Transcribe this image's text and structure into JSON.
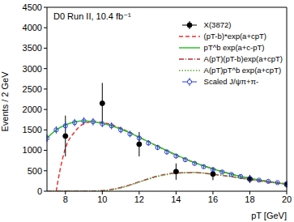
{
  "chart_data": {
    "type": "scatter",
    "title": "D0 Run II, 10.4 fb⁻¹",
    "x_label": "pT [GeV]",
    "y_label": "Events / 2 GeV",
    "xlim": [
      7,
      20
    ],
    "xticks": [
      8,
      10,
      12,
      14,
      16,
      18,
      20
    ],
    "ylim": [
      0,
      4500
    ],
    "yticks": [
      0,
      500,
      1000,
      1500,
      2000,
      2500,
      3000,
      3500,
      4000,
      4500
    ],
    "legend": "upper right",
    "series": [
      {
        "name": "X(3872)",
        "type": "scatter",
        "marker": "filled_circle",
        "color": "#000000",
        "x": [
          8,
          10,
          12,
          14,
          16,
          18,
          20
        ],
        "values": [
          1350,
          2150,
          1150,
          480,
          420,
          300,
          170
        ],
        "errors": [
          500,
          500,
          300,
          200,
          150,
          100,
          80
        ]
      },
      {
        "name": "(pT-b)*exp(a+cpT)",
        "type": "line",
        "line_style": "dashed",
        "color": "#e8322b",
        "x": [
          7.5,
          7.7,
          8,
          8.5,
          9,
          9.5,
          10,
          11,
          12,
          13,
          14,
          15,
          16,
          17,
          18,
          19,
          20
        ],
        "values": [
          0,
          500,
          1050,
          1450,
          1650,
          1700,
          1680,
          1540,
          1320,
          1100,
          880,
          700,
          550,
          420,
          320,
          240,
          180
        ]
      },
      {
        "name": "pT^b exp(a+c-pT)",
        "type": "line",
        "line_style": "solid",
        "color": "#2ec02e",
        "x": [
          7,
          7.5,
          8,
          9,
          10,
          11,
          12,
          13,
          14,
          15,
          16,
          17,
          18,
          19,
          20
        ],
        "values": [
          1300,
          1500,
          1620,
          1720,
          1660,
          1520,
          1320,
          1100,
          890,
          700,
          545,
          415,
          315,
          235,
          175
        ]
      },
      {
        "name": "A(pT)(pT-b)exp(a+cpT)",
        "type": "line",
        "line_style": "dashdot",
        "color": "#b0303a",
        "x": [
          7,
          9,
          10,
          11,
          12,
          13,
          14,
          15,
          16,
          17,
          18,
          19,
          20
        ],
        "values": [
          0,
          0,
          15,
          90,
          230,
          370,
          445,
          455,
          415,
          355,
          285,
          225,
          175
        ]
      },
      {
        "name": "A(pT)pT^b exp(a+cpT)",
        "type": "line",
        "line_style": "dotted",
        "color": "#5aa832",
        "x": [
          7,
          9,
          10,
          11,
          12,
          13,
          14,
          15,
          16,
          17,
          18,
          19,
          20
        ],
        "values": [
          0,
          0,
          10,
          80,
          220,
          360,
          440,
          460,
          420,
          360,
          290,
          230,
          180
        ]
      },
      {
        "name": "Scaled  J/ψπ+π-",
        "type": "scatter",
        "marker": "open_circle",
        "color": "#2a3cd8",
        "x": [
          7,
          7.5,
          8,
          8.5,
          9,
          9.5,
          10,
          10.5,
          11,
          11.5,
          12,
          12.5,
          13,
          13.5,
          14,
          14.5,
          15,
          15.5,
          16,
          16.5,
          17,
          17.5,
          18,
          18.5,
          19,
          19.5,
          20
        ],
        "values": [
          1300,
          1500,
          1600,
          1680,
          1720,
          1700,
          1650,
          1600,
          1500,
          1400,
          1300,
          1180,
          1070,
          960,
          860,
          770,
          680,
          600,
          530,
          470,
          410,
          360,
          310,
          270,
          240,
          210,
          180
        ],
        "errors": [
          90,
          90,
          90,
          90,
          90,
          90,
          85,
          85,
          80,
          80,
          75,
          70,
          65,
          60,
          55,
          50,
          45,
          45,
          40,
          40,
          35,
          35,
          30,
          30,
          30,
          30,
          30
        ]
      }
    ]
  }
}
